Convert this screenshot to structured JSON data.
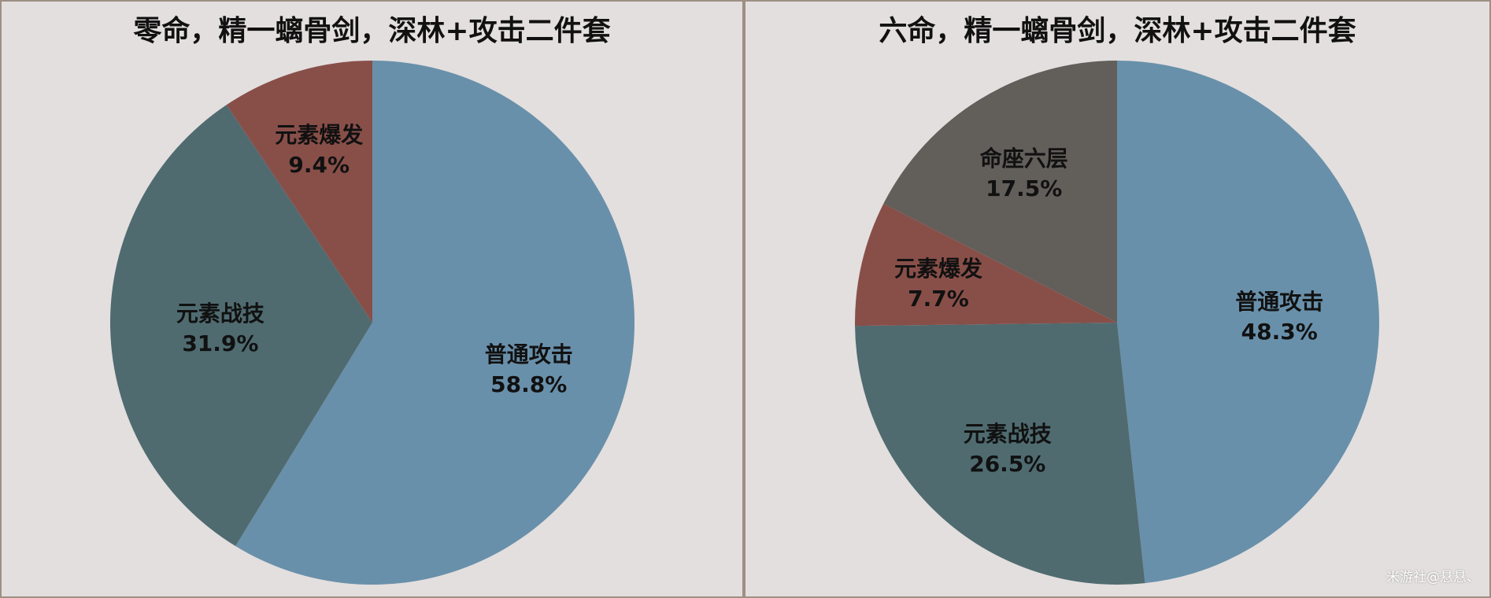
{
  "watermark": "米游社@悬悬、",
  "chart_data": [
    {
      "type": "pie",
      "title": "零命，精一螭骨剑，深林+攻击二件套",
      "slices": [
        {
          "label": "普通攻击",
          "value_text": "58.8%",
          "value": 58.8,
          "color": "#6990aa"
        },
        {
          "label": "元素战技",
          "value_text": "31.9%",
          "value": 31.9,
          "color": "#4f6b70"
        },
        {
          "label": "元素爆发",
          "value_text": "9.4%",
          "value": 9.4,
          "color": "#884f49"
        }
      ]
    },
    {
      "type": "pie",
      "title": "六命，精一螭骨剑，深林+攻击二件套",
      "slices": [
        {
          "label": "普通攻击",
          "value_text": "48.3%",
          "value": 48.3,
          "color": "#6990aa"
        },
        {
          "label": "元素战技",
          "value_text": "26.5%",
          "value": 26.5,
          "color": "#4f6b70"
        },
        {
          "label": "元素爆发",
          "value_text": "7.7%",
          "value": 7.7,
          "color": "#884f49"
        },
        {
          "label": "命座六层",
          "value_text": "17.5%",
          "value": 17.5,
          "color": "#625e5a"
        }
      ]
    }
  ]
}
